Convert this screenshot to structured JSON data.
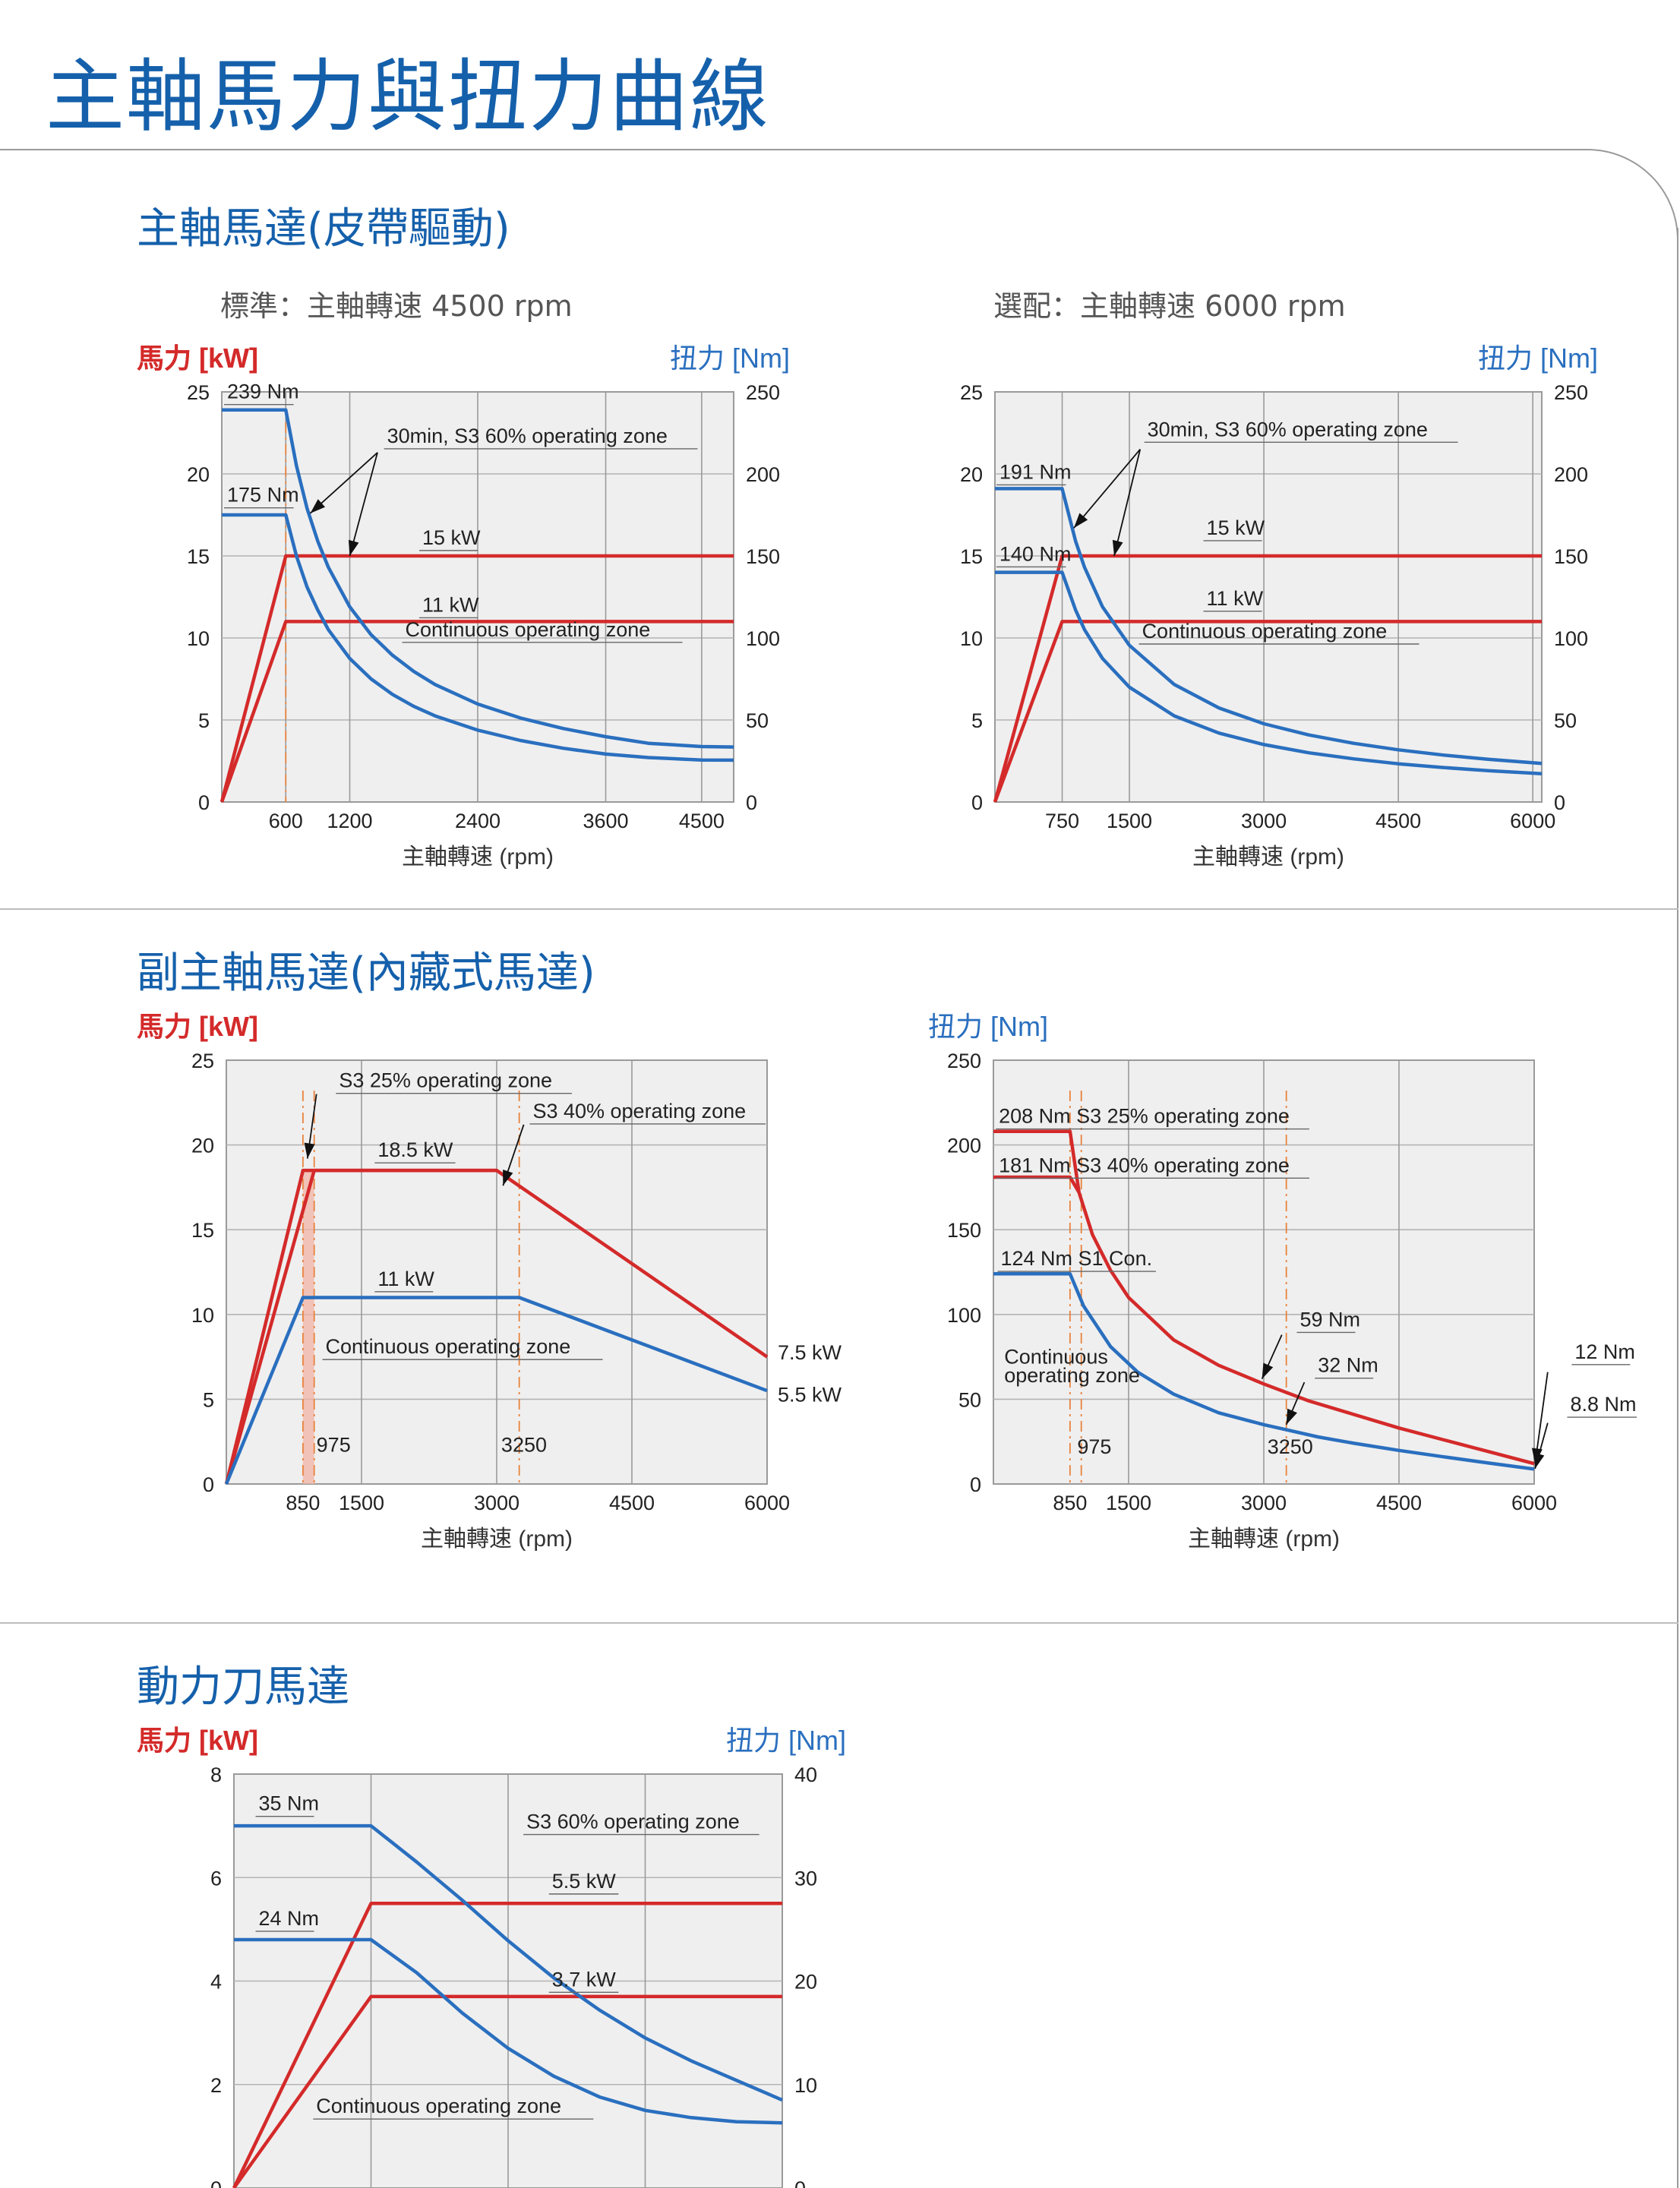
{
  "page_title": "主軸馬力與扭力曲線",
  "sections": {
    "belt": {
      "title": "主軸馬達(皮帶驅動)",
      "standard_label": "標準：主軸轉速 4500 rpm",
      "option_label": "選配：主軸轉速  6000 rpm"
    },
    "sub": {
      "title": "副主軸馬達(內藏式馬達)"
    },
    "tool": {
      "title": "動力刀馬達"
    }
  },
  "colors": {
    "power": "#d42a2a",
    "torque": "#2a6fbf",
    "hp_label": "#d42a2a",
    "torque_label": "#2a6fbf",
    "title": "#1560ab",
    "plot_bg": "#efefef",
    "grid": "#b4b4b4"
  },
  "chart_data": [
    {
      "id": "c1",
      "type": "line",
      "left_axis_label": "馬力 [kW]",
      "right_axis_label": "扭力 [Nm]",
      "xlabel": "主軸轉速 (rpm)",
      "xlim": [
        0,
        4800
      ],
      "ylim": [
        0,
        25
      ],
      "y2lim": [
        0,
        250
      ],
      "x_ticks": [
        600,
        1200,
        2400,
        3600,
        4500
      ],
      "x_grid": [
        600,
        1200,
        2400,
        3600,
        4500
      ],
      "y_ticks": [
        0,
        5,
        10,
        15,
        20,
        25
      ],
      "y2_ticks": [
        0,
        50,
        100,
        150,
        200,
        250
      ],
      "ref_lines": [
        600
      ],
      "series": [
        {
          "axis": "left",
          "color": "power",
          "x": [
            0,
            600,
            4800
          ],
          "y": [
            0,
            15,
            15
          ]
        },
        {
          "axis": "left",
          "color": "power",
          "x": [
            0,
            600,
            4800
          ],
          "y": [
            0,
            11,
            11
          ]
        },
        {
          "axis": "right",
          "color": "torque",
          "x": [
            0,
            600,
            700,
            800,
            900,
            1000,
            1200,
            1400,
            1600,
            1800,
            2000,
            2400,
            2800,
            3200,
            3600,
            4000,
            4500,
            4800
          ],
          "y": [
            239,
            239,
            205,
            179,
            159,
            143,
            119,
            102,
            89.5,
            79.6,
            71.6,
            59.7,
            51.2,
            44.8,
            39.8,
            35.8,
            33.8,
            33.5
          ]
        },
        {
          "axis": "right",
          "color": "torque",
          "x": [
            0,
            600,
            700,
            800,
            900,
            1000,
            1200,
            1400,
            1600,
            1800,
            2000,
            2400,
            2800,
            3200,
            3600,
            4000,
            4500,
            4800
          ],
          "y": [
            175,
            175,
            150,
            131,
            117,
            105,
            87.5,
            75,
            65.6,
            58.3,
            52.5,
            43.8,
            37.5,
            32.8,
            29.2,
            27.1,
            25.6,
            25.5
          ]
        }
      ],
      "annotations": [
        {
          "text": "239 Nm",
          "x": 50,
          "y": 24.6
        },
        {
          "text": "175 Nm",
          "x": 50,
          "y": 18.3
        },
        {
          "text": "30min, S3 60% operating zone",
          "x": 1550,
          "y": 21.9
        },
        {
          "text": "15 kW",
          "x": 1880,
          "y": 15.7
        },
        {
          "text": "11 kW",
          "x": 1880,
          "y": 11.6
        },
        {
          "text": "Continuous operating zone",
          "x": 1720,
          "y": 10.1
        }
      ],
      "arrows": [
        {
          "from": [
            1460,
            21.3
          ],
          "to": [
            830,
            17.6
          ]
        },
        {
          "from": [
            1460,
            21.3
          ],
          "to": [
            1200,
            15.0
          ]
        }
      ]
    },
    {
      "id": "c2",
      "type": "line",
      "left_axis_label": "馬力 [kW]",
      "right_axis_label": "扭力 [Nm]",
      "xlabel": "主軸轉速 (rpm)",
      "xlim": [
        0,
        6100
      ],
      "ylim": [
        0,
        25
      ],
      "y2lim": [
        0,
        250
      ],
      "x_ticks": [
        750,
        1500,
        3000,
        4500,
        6000
      ],
      "x_grid": [
        750,
        1500,
        3000,
        4500,
        6000
      ],
      "y_ticks": [
        0,
        5,
        10,
        15,
        20,
        25
      ],
      "y2_ticks": [
        0,
        50,
        100,
        150,
        200,
        250
      ],
      "ref_lines": [],
      "series": [
        {
          "axis": "left",
          "color": "power",
          "x": [
            0,
            750,
            6100
          ],
          "y": [
            0,
            15,
            15
          ]
        },
        {
          "axis": "left",
          "color": "power",
          "x": [
            0,
            750,
            6100
          ],
          "y": [
            0,
            11,
            11
          ]
        },
        {
          "axis": "right",
          "color": "torque",
          "x": [
            0,
            750,
            900,
            1000,
            1200,
            1500,
            2000,
            2500,
            3000,
            3500,
            4000,
            4500,
            5000,
            5500,
            6100
          ],
          "y": [
            191,
            191,
            159,
            143,
            119,
            95.5,
            71.6,
            57.3,
            47.7,
            40.9,
            35.8,
            31.8,
            28.6,
            26,
            23.5
          ]
        },
        {
          "axis": "right",
          "color": "torque",
          "x": [
            0,
            750,
            900,
            1000,
            1200,
            1500,
            2000,
            2500,
            3000,
            3500,
            4000,
            4500,
            5000,
            5500,
            6100
          ],
          "y": [
            140,
            140,
            117,
            105,
            87.5,
            70,
            52.5,
            42,
            35,
            30,
            26.3,
            23.3,
            21,
            19.1,
            17.2
          ]
        }
      ],
      "annotations": [
        {
          "text": "191 Nm",
          "x": 50,
          "y": 19.7
        },
        {
          "text": "140 Nm",
          "x": 50,
          "y": 14.7
        },
        {
          "text": "30min, S3 60% operating zone",
          "x": 1700,
          "y": 22.3
        },
        {
          "text": "15 kW",
          "x": 2360,
          "y": 16.3
        },
        {
          "text": "11 kW",
          "x": 2360,
          "y": 12.0
        },
        {
          "text": "Continuous operating zone",
          "x": 1640,
          "y": 10.0
        }
      ],
      "arrows": [
        {
          "from": [
            1620,
            21.5
          ],
          "to": [
            880,
            16.7
          ]
        },
        {
          "from": [
            1620,
            21.5
          ],
          "to": [
            1330,
            15.0
          ]
        }
      ]
    },
    {
      "id": "c3",
      "type": "line",
      "left_axis_label": "馬力 [kW]",
      "xlabel": "主軸轉速 (rpm)",
      "xlim": [
        0,
        6000
      ],
      "ylim": [
        0,
        25
      ],
      "x_ticks": [
        850,
        1500,
        3000,
        4500,
        6000
      ],
      "x_grid": [
        1500,
        3000,
        4500,
        6000
      ],
      "y_ticks": [
        0,
        5,
        10,
        15,
        20,
        25
      ],
      "ref_lines": [
        850,
        975,
        3250
      ],
      "shaded": {
        "x": [
          850,
          975,
          975,
          850
        ],
        "y": [
          18.5,
          18.5,
          0,
          0
        ]
      },
      "series": [
        {
          "axis": "left",
          "color": "power",
          "x": [
            0,
            850,
            3000,
            6000
          ],
          "y": [
            0,
            18.5,
            18.5,
            7.5
          ]
        },
        {
          "axis": "left",
          "color": "power",
          "x": [
            0,
            975,
            3000
          ],
          "y": [
            0,
            18.5,
            18.5
          ]
        },
        {
          "axis": "left",
          "color": "torque",
          "x": [
            0,
            850,
            3250,
            6000
          ],
          "y": [
            0,
            11,
            11,
            5.5
          ]
        }
      ],
      "annotations": [
        {
          "text": "S3 25% operating zone",
          "x": 1250,
          "y": 23.4
        },
        {
          "text": "S3 40% operating zone",
          "x": 3400,
          "y": 21.6
        },
        {
          "text": "18.5 kW",
          "x": 1680,
          "y": 19.3
        },
        {
          "text": "11 kW",
          "x": 1680,
          "y": 11.7
        },
        {
          "text": "Continuous operating zone",
          "x": 1100,
          "y": 7.7
        },
        {
          "text": "975",
          "x": 1000,
          "y": 1.9
        },
        {
          "text": "3250",
          "x": 3050,
          "y": 1.9
        }
      ],
      "arrows": [
        {
          "from": [
            1000,
            23.0
          ],
          "to": [
            900,
            19.2
          ]
        },
        {
          "from": [
            3300,
            21.2
          ],
          "to": [
            3070,
            17.6
          ]
        }
      ],
      "end_labels": [
        {
          "text": "7.5 kW",
          "y": 7.8
        },
        {
          "text": "5.5 kW",
          "y": 5.3
        }
      ]
    },
    {
      "id": "c4",
      "type": "line",
      "right_axis_label": "扭力 [Nm]",
      "xlabel": "主軸轉速 (rpm)",
      "xlim": [
        0,
        6000
      ],
      "ylim": [
        0,
        250
      ],
      "x_ticks": [
        850,
        1500,
        3000,
        4500,
        6000
      ],
      "x_grid": [
        1500,
        3000,
        4500,
        6000
      ],
      "y_ticks": [
        0,
        50,
        100,
        150,
        200,
        250
      ],
      "ref_lines": [
        850,
        975,
        3250
      ],
      "series": [
        {
          "axis": "left",
          "color": "power",
          "x": [
            0,
            850,
            950,
            1100,
            1300,
            1500,
            2000,
            2500,
            3000,
            3500,
            4000,
            4500,
            5000,
            5500,
            6000
          ],
          "y": [
            208,
            208,
            172,
            147,
            126,
            110,
            85,
            70,
            59,
            49,
            41,
            33,
            26,
            19,
            12
          ]
        },
        {
          "axis": "left",
          "color": "power",
          "x": [
            0,
            850,
            950
          ],
          "y": [
            181,
            181,
            172
          ]
        },
        {
          "axis": "left",
          "color": "torque",
          "x": [
            0,
            850,
            1000,
            1300,
            1600,
            2000,
            2500,
            3000,
            3250,
            3600,
            4000,
            4500,
            5000,
            5500,
            6000
          ],
          "y": [
            124,
            124,
            105,
            81,
            66,
            53,
            42,
            35,
            32,
            27.8,
            24,
            19.8,
            16,
            12.3,
            8.8
          ]
        }
      ],
      "annotations": [
        {
          "text": "208 Nm S3 25% operating zone",
          "x": 60,
          "y": 213
        },
        {
          "text": "181 Nm S3 40% operating zone",
          "x": 60,
          "y": 184
        },
        {
          "text": "124 Nm S1 Con.",
          "x": 80,
          "y": 129
        },
        {
          "text": "59 Nm",
          "x": 3400,
          "y": 93
        },
        {
          "text": "32 Nm",
          "x": 3600,
          "y": 66
        },
        {
          "text": "Continuous",
          "x": 120,
          "y": 71
        },
        {
          "text": "operating zone",
          "x": 120,
          "y": 60
        },
        {
          "text": "975",
          "x": 930,
          "y": 18
        },
        {
          "text": "3250",
          "x": 3040,
          "y": 18
        },
        {
          "text": "12 Nm",
          "x": 6450,
          "y": 74
        },
        {
          "text": "8.8 Nm",
          "x": 6400,
          "y": 43
        }
      ],
      "arrows": [
        {
          "from": [
            3200,
            88
          ],
          "to": [
            2980,
            62
          ]
        },
        {
          "from": [
            3450,
            60
          ],
          "to": [
            3250,
            35
          ]
        },
        {
          "from": [
            6150,
            66
          ],
          "to": [
            6010,
            12
          ]
        },
        {
          "from": [
            6150,
            36
          ],
          "to": [
            6010,
            9
          ]
        }
      ]
    },
    {
      "id": "c5",
      "type": "line",
      "left_axis_label": "馬力 [kW]",
      "right_axis_label": "扭力 [Nm]",
      "xlim": [
        0,
        6000
      ],
      "ylim": [
        0,
        8
      ],
      "y2lim": [
        0,
        40
      ],
      "x_ticks": [],
      "x_grid": [
        1500,
        3000,
        4500,
        6000
      ],
      "y_ticks": [
        0,
        2,
        4,
        6,
        8
      ],
      "y2_ticks": [
        0,
        10,
        20,
        30,
        40
      ],
      "ref_lines": [],
      "series": [
        {
          "axis": "left",
          "color": "power",
          "x": [
            0,
            1500,
            6000
          ],
          "y": [
            0,
            5.5,
            5.5
          ]
        },
        {
          "axis": "left",
          "color": "power",
          "x": [
            0,
            1500,
            6000
          ],
          "y": [
            0,
            3.7,
            3.7
          ]
        },
        {
          "axis": "right",
          "color": "torque",
          "x": [
            0,
            1500,
            2000,
            2500,
            3000,
            3500,
            4000,
            4500,
            5000,
            5500,
            6000
          ],
          "y": [
            35,
            35,
            31.5,
            27.8,
            23.9,
            20.3,
            17.2,
            14.5,
            12.3,
            10.4,
            8.5
          ]
        },
        {
          "axis": "right",
          "color": "torque",
          "x": [
            0,
            1500,
            2000,
            2500,
            3000,
            3500,
            4000,
            4500,
            5000,
            5500,
            6000
          ],
          "y": [
            24,
            24,
            20.8,
            16.9,
            13.5,
            10.8,
            8.8,
            7.5,
            6.8,
            6.4,
            6.3
          ]
        }
      ],
      "annotations": [
        {
          "text": "35 Nm",
          "x": 270,
          "y": 7.3
        },
        {
          "text": "24 Nm",
          "x": 270,
          "y": 5.08
        },
        {
          "text": "S3 60% operating zone",
          "x": 3200,
          "y": 6.95
        },
        {
          "text": "5.5 kW",
          "x": 3480,
          "y": 5.8
        },
        {
          "text": "3.7 kW",
          "x": 3480,
          "y": 3.9
        },
        {
          "text": "Continuous operating zone",
          "x": 900,
          "y": 1.45
        }
      ],
      "arrows": []
    }
  ]
}
